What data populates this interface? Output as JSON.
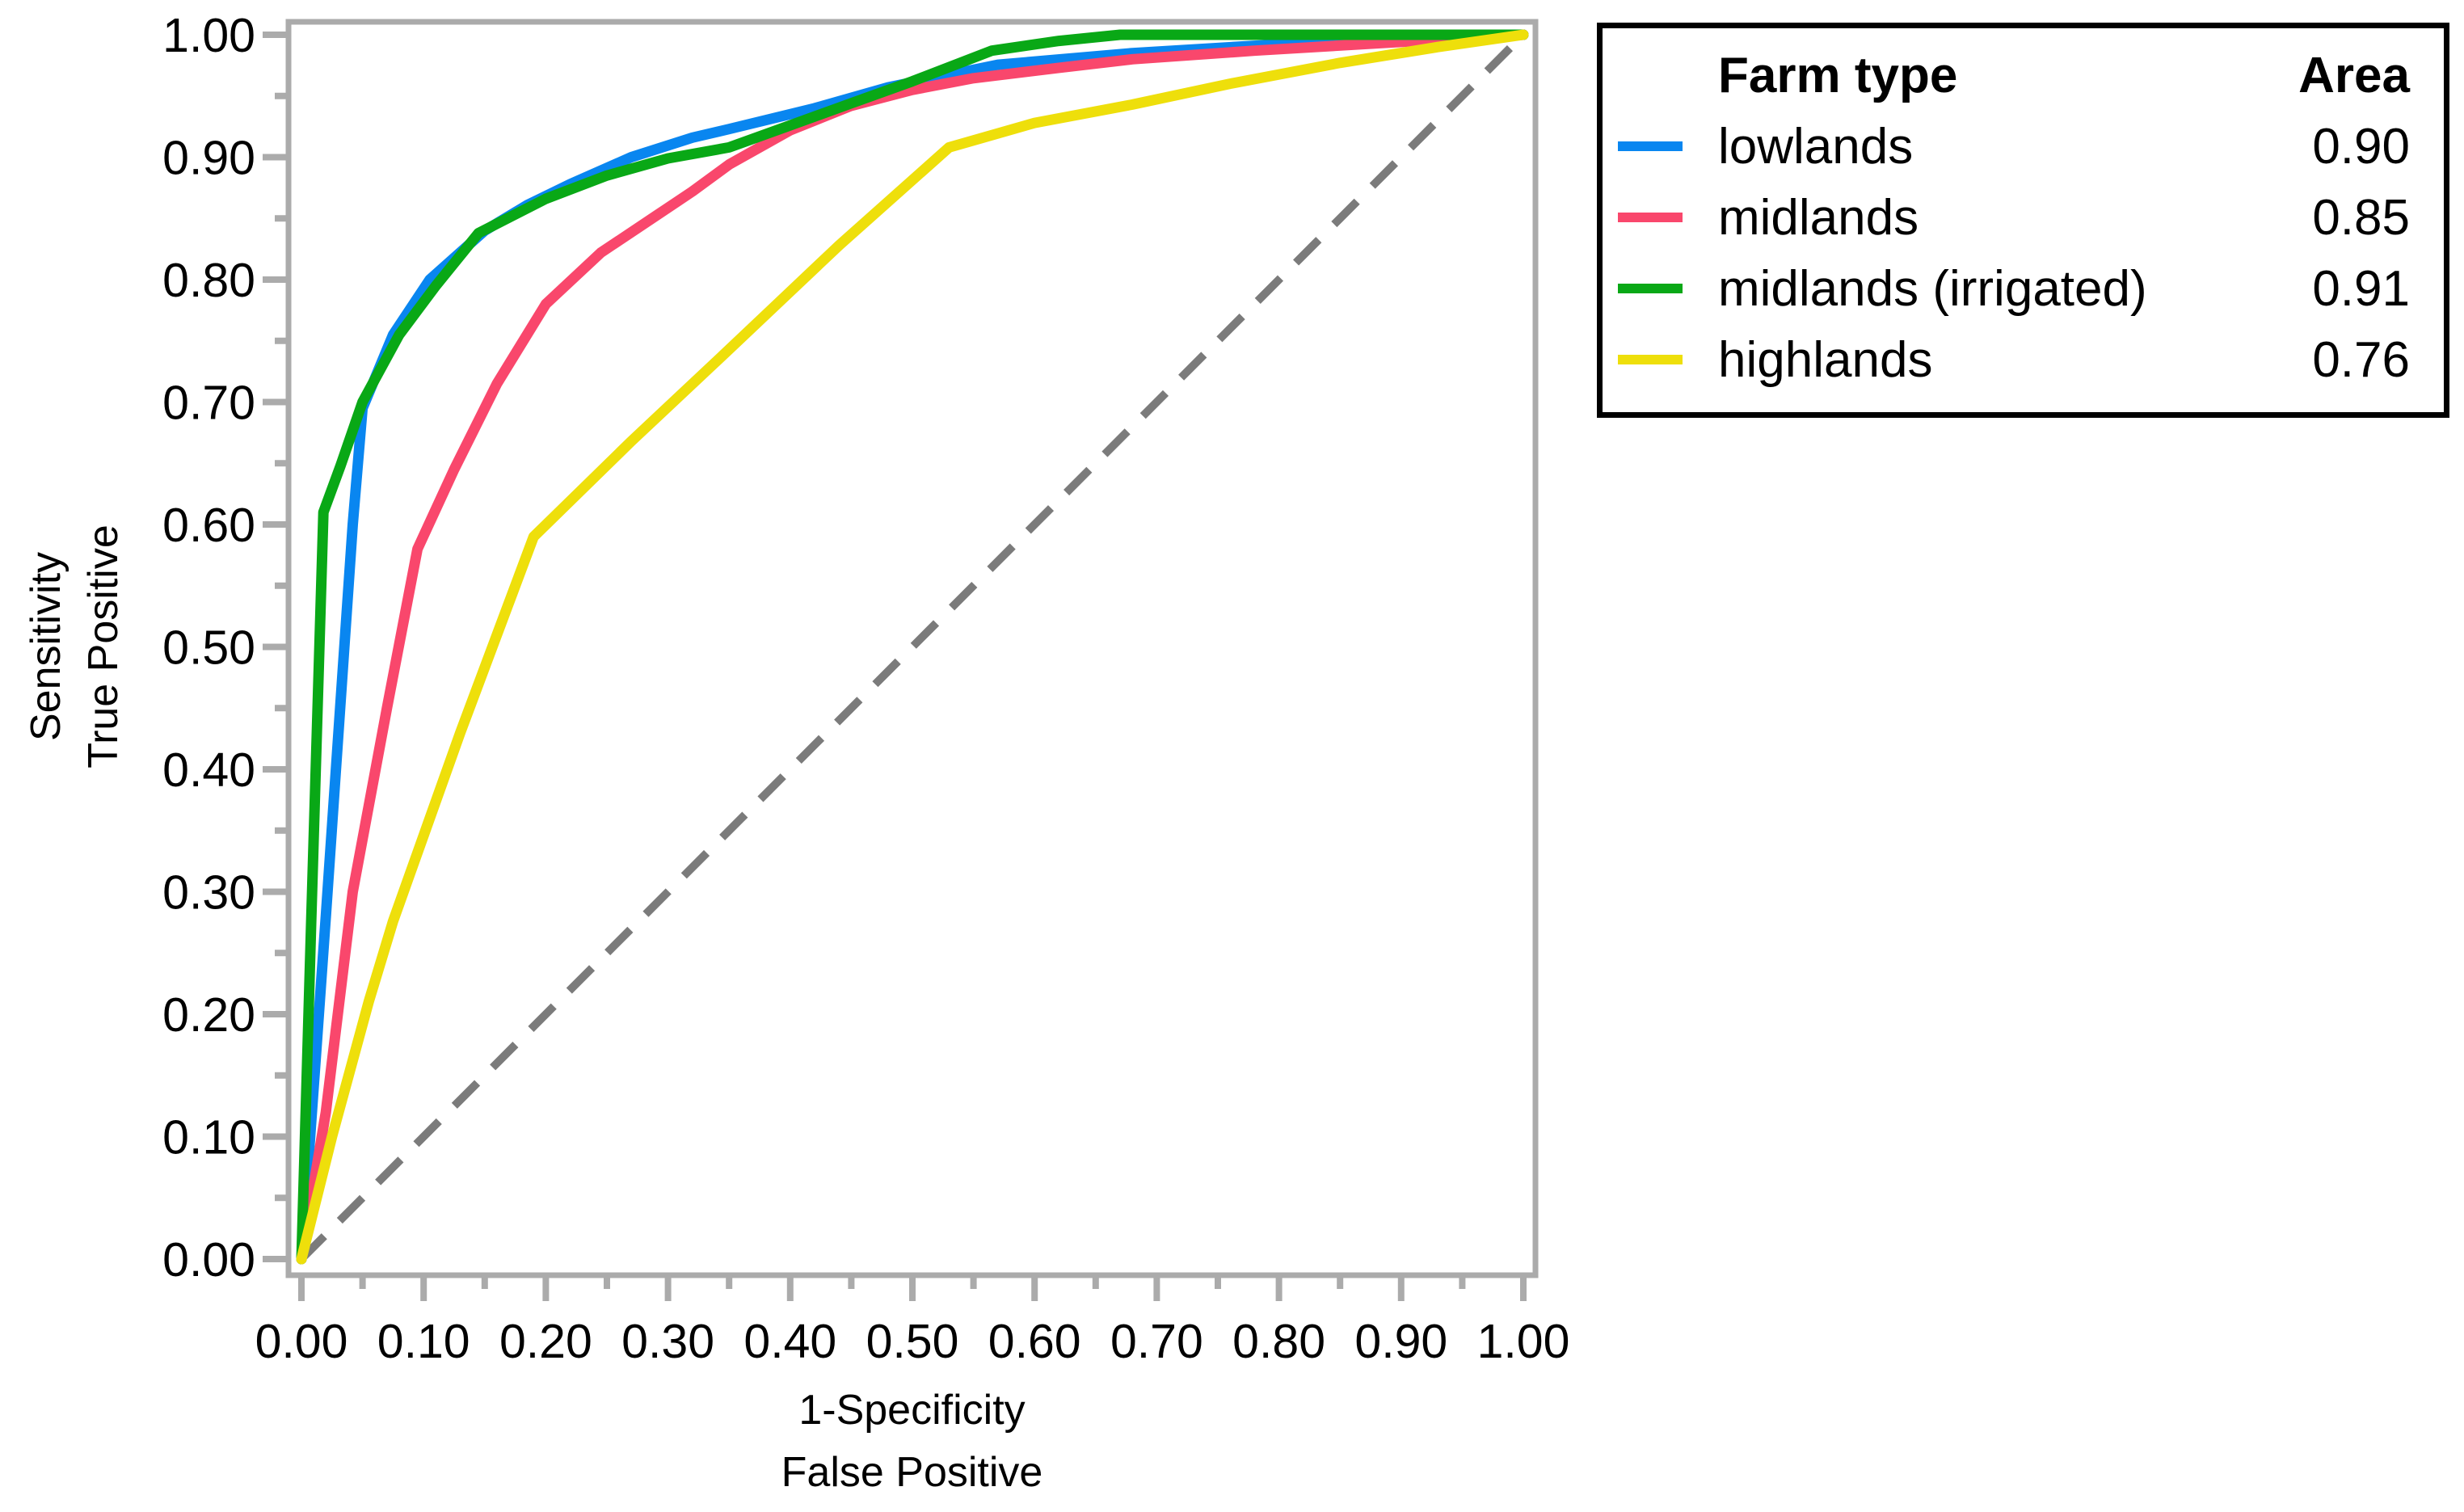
{
  "chart_data": {
    "type": "line",
    "subtype": "roc-curve",
    "title": "",
    "grid": false,
    "x_axis": {
      "title_line1": "1-Specificity",
      "title_line2": "False Positive",
      "range": [
        0,
        1
      ],
      "tick_values": [
        0,
        0.1,
        0.2,
        0.3,
        0.4,
        0.5,
        0.6,
        0.7,
        0.8,
        0.9,
        1
      ],
      "tick_labels": [
        "0.00",
        "0.10",
        "0.20",
        "0.30",
        "0.40",
        "0.50",
        "0.60",
        "0.70",
        "0.80",
        "0.90",
        "1.00"
      ],
      "minor_tick_values": [
        0.05,
        0.15,
        0.25,
        0.35,
        0.45,
        0.55,
        0.65,
        0.75,
        0.85,
        0.95
      ]
    },
    "y_axis": {
      "title_line1": "Sensitivity",
      "title_line2": "True Positive",
      "range": [
        0,
        1
      ],
      "tick_values": [
        0,
        0.1,
        0.2,
        0.3,
        0.4,
        0.5,
        0.6,
        0.7,
        0.8,
        0.9,
        1
      ],
      "tick_labels": [
        "0.00",
        "0.10",
        "0.20",
        "0.30",
        "0.40",
        "0.50",
        "0.60",
        "0.70",
        "0.80",
        "0.90",
        "1.00"
      ],
      "minor_tick_values": [
        0.05,
        0.15,
        0.25,
        0.35,
        0.45,
        0.55,
        0.65,
        0.75,
        0.85,
        0.95
      ]
    },
    "reference_line": {
      "style": "dashed",
      "color": "#7B7B7B",
      "points": [
        [
          0,
          0
        ],
        [
          1,
          1
        ]
      ]
    },
    "series": [
      {
        "name": "lowlands",
        "area": "0.90",
        "color": "#0986F0",
        "points": [
          [
            0,
            0
          ],
          [
            0.02,
            0.28
          ],
          [
            0.042,
            0.6
          ],
          [
            0.05,
            0.695
          ],
          [
            0.075,
            0.755
          ],
          [
            0.105,
            0.8
          ],
          [
            0.15,
            0.84
          ],
          [
            0.185,
            0.861
          ],
          [
            0.22,
            0.878
          ],
          [
            0.27,
            0.9
          ],
          [
            0.32,
            0.916
          ],
          [
            0.35,
            0.923
          ],
          [
            0.42,
            0.94
          ],
          [
            0.48,
            0.957
          ],
          [
            0.57,
            0.9755
          ],
          [
            0.68,
            0.985
          ],
          [
            0.78,
            0.991
          ],
          [
            0.88,
            0.996
          ],
          [
            1,
            1
          ]
        ]
      },
      {
        "name": "midlands",
        "area": "0.85",
        "color": "#F9476C",
        "points": [
          [
            0,
            0
          ],
          [
            0.02,
            0.12
          ],
          [
            0.042,
            0.3
          ],
          [
            0.07,
            0.45
          ],
          [
            0.095,
            0.58
          ],
          [
            0.125,
            0.645
          ],
          [
            0.16,
            0.715
          ],
          [
            0.2,
            0.78
          ],
          [
            0.245,
            0.822
          ],
          [
            0.29,
            0.852
          ],
          [
            0.32,
            0.872
          ],
          [
            0.35,
            0.894
          ],
          [
            0.4,
            0.922
          ],
          [
            0.45,
            0.942
          ],
          [
            0.5,
            0.955
          ],
          [
            0.55,
            0.9645
          ],
          [
            0.62,
            0.973
          ],
          [
            0.68,
            0.98
          ],
          [
            0.78,
            0.987
          ],
          [
            0.88,
            0.993
          ],
          [
            1,
            1
          ]
        ]
      },
      {
        "name": "midlands (irrigated)",
        "area": "0.91",
        "color": "#09A816",
        "points": [
          [
            0,
            0
          ],
          [
            0.008,
            0.276
          ],
          [
            0.018,
            0.61
          ],
          [
            0.032,
            0.648
          ],
          [
            0.05,
            0.7
          ],
          [
            0.08,
            0.755
          ],
          [
            0.11,
            0.795
          ],
          [
            0.145,
            0.838
          ],
          [
            0.2,
            0.866
          ],
          [
            0.25,
            0.885
          ],
          [
            0.3,
            0.899
          ],
          [
            0.35,
            0.908
          ],
          [
            0.4,
            0.926
          ],
          [
            0.45,
            0.944
          ],
          [
            0.5,
            0.962
          ],
          [
            0.565,
            0.987
          ],
          [
            0.62,
            0.995
          ],
          [
            0.67,
            1
          ],
          [
            1,
            1
          ]
        ]
      },
      {
        "name": "highlands",
        "area": "0.76",
        "color": "#EEDF0B",
        "points": [
          [
            0,
            0
          ],
          [
            0.025,
            0.1
          ],
          [
            0.055,
            0.21
          ],
          [
            0.075,
            0.276
          ],
          [
            0.13,
            0.43
          ],
          [
            0.19,
            0.59
          ],
          [
            0.27,
            0.668
          ],
          [
            0.35,
            0.743
          ],
          [
            0.44,
            0.828
          ],
          [
            0.53,
            0.908
          ],
          [
            0.6,
            0.928
          ],
          [
            0.68,
            0.943
          ],
          [
            0.76,
            0.96
          ],
          [
            0.85,
            0.977
          ],
          [
            0.93,
            0.99
          ],
          [
            1,
            1
          ]
        ]
      }
    ],
    "legend": {
      "title": "Farm type",
      "value_header": "Area",
      "position": "top-right"
    }
  },
  "colors": {
    "background": "#FFFFFF",
    "frame": "#ABABAB",
    "tick": "#ABABAB",
    "text": "#000000",
    "legend_border": "#000000"
  }
}
